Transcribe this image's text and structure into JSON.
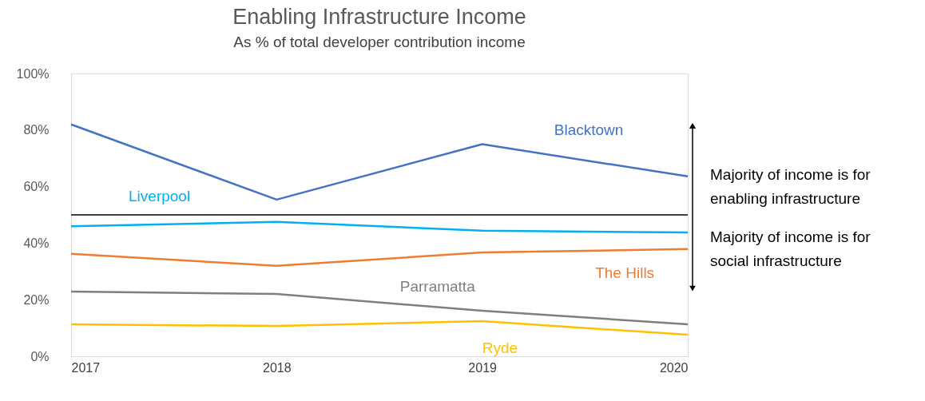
{
  "chart_data": {
    "type": "line",
    "title": "Enabling Infrastructure Income",
    "subtitle": "As % of total developer contribution income",
    "x": [
      2017,
      2018,
      2019,
      2020
    ],
    "series": [
      {
        "name": "Blacktown",
        "color": "#4472c4",
        "values": [
          82,
          55.4,
          75,
          63.6
        ]
      },
      {
        "name": "Liverpool",
        "color": "#00b0f0",
        "values": [
          46,
          47.5,
          44.4,
          43.8
        ]
      },
      {
        "name": "The Hills",
        "color": "#ed7d31",
        "values": [
          36.2,
          32,
          36.7,
          37.9
        ]
      },
      {
        "name": "Parramatta",
        "color": "#7f7f7f",
        "values": [
          22.9,
          22,
          16.1,
          11.3
        ]
      },
      {
        "name": "Ryde",
        "color": "#ffc000",
        "values": [
          11.3,
          10.7,
          12.4,
          7.6
        ]
      }
    ],
    "xlim": [
      2017,
      2020
    ],
    "xticks": [
      2017,
      2018,
      2019,
      2020
    ],
    "ylim": [
      0,
      100
    ],
    "yticks": [
      {
        "value": 0,
        "label": "0%"
      },
      {
        "value": 20,
        "label": "20%"
      },
      {
        "value": 40,
        "label": "40%"
      },
      {
        "value": 60,
        "label": "60%"
      },
      {
        "value": 80,
        "label": "80%"
      },
      {
        "value": 100,
        "label": "100%"
      }
    ],
    "ref_lines": [
      {
        "axis": "y",
        "value": 50,
        "color": "#000000"
      }
    ],
    "annotations": [
      "Majority of income is for\nenabling infrastructure",
      "Majority of income is for\nsocial infrastructure"
    ],
    "grid": false,
    "marker": "none",
    "line_style": "solid"
  }
}
